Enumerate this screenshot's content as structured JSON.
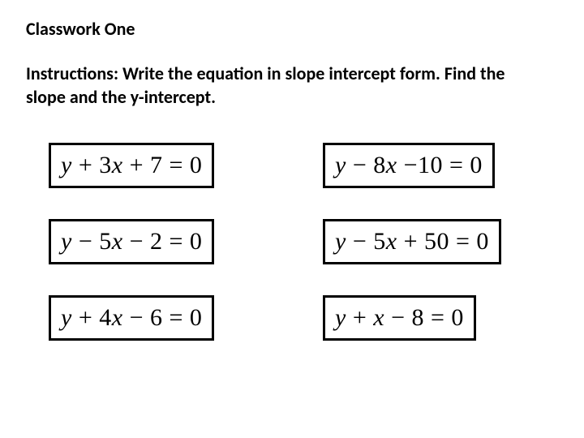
{
  "title": "Classwork One",
  "instructions": "Instructions: Write the equation in slope intercept form. Find the slope and the y-intercept.",
  "equations": [
    {
      "y": "y",
      "t1_op": "+",
      "t1_coef": "3",
      "t1_var": "x",
      "t2_op": "+",
      "t2_val": "7",
      "rhs": "0"
    },
    {
      "y": "y",
      "t1_op": "−",
      "t1_coef": "8",
      "t1_var": "x",
      "t2_op": "−",
      "t2_val": "10",
      "rhs": "0"
    },
    {
      "y": "y",
      "t1_op": "−",
      "t1_coef": "5",
      "t1_var": "x",
      "t2_op": "−",
      "t2_val": "2",
      "rhs": "0"
    },
    {
      "y": "y",
      "t1_op": "−",
      "t1_coef": "5",
      "t1_var": "x",
      "t2_op": "+",
      "t2_val": "50",
      "rhs": "0"
    },
    {
      "y": "y",
      "t1_op": "+",
      "t1_coef": "4",
      "t1_var": "x",
      "t2_op": "−",
      "t2_val": "6",
      "rhs": "0"
    },
    {
      "y": "y",
      "t1_op": "+",
      "t1_coef": "",
      "t1_var": "x",
      "t2_op": "−",
      "t2_val": "8",
      "rhs": "0"
    }
  ],
  "styling": {
    "page_bg": "#ffffff",
    "text_color": "#000000",
    "border_color": "#000000",
    "border_width": 3,
    "title_fontsize": 22,
    "instructions_fontsize": 22,
    "equation_fontsize": 30,
    "grid_row_gap": 38,
    "grid_col_gap": 58
  }
}
